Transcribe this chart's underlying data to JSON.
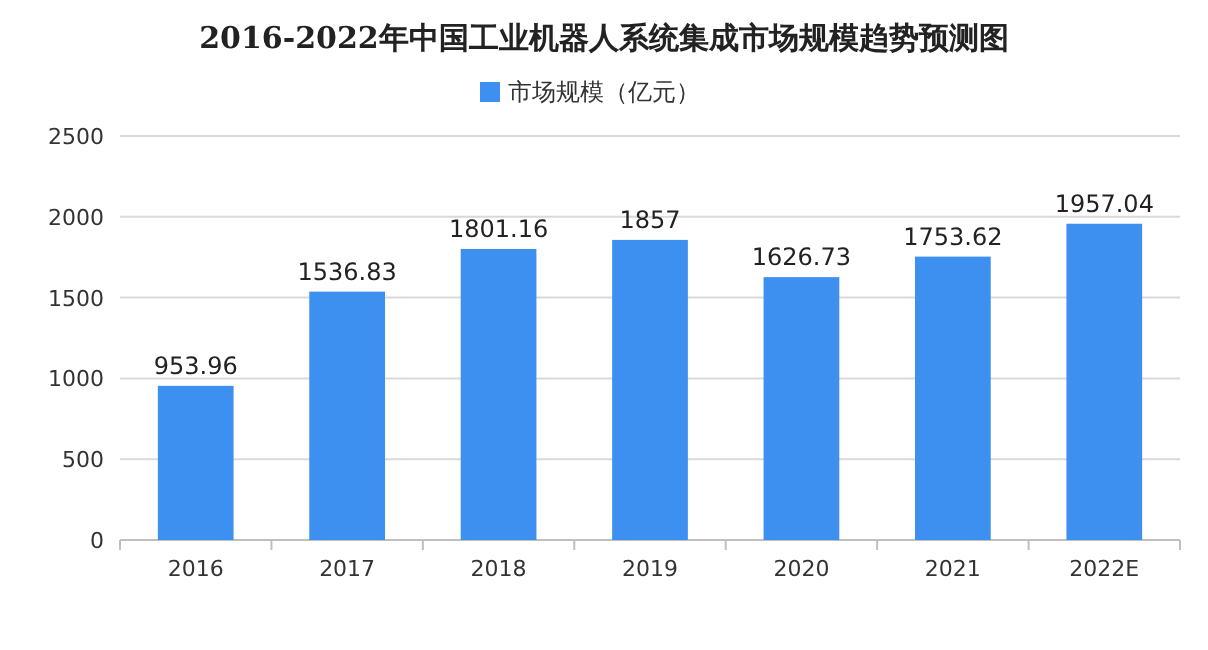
{
  "chart_data": {
    "type": "bar",
    "title": "2016-2022年中国工业机器人系统集成市场规模趋势预测图",
    "categories": [
      "2016",
      "2017",
      "2018",
      "2019",
      "2020",
      "2021",
      "2022E"
    ],
    "series": [
      {
        "name": "市场规模（亿元）",
        "color": "#3d8ff0",
        "values": [
          953.96,
          1536.83,
          1801.16,
          1857,
          1626.73,
          1753.62,
          1957.04
        ]
      }
    ],
    "ylim": [
      0,
      2500
    ],
    "yticks": [
      0,
      500,
      1000,
      1500,
      2000,
      2500
    ],
    "grid": "y",
    "legend": "top",
    "data_labels": true
  }
}
